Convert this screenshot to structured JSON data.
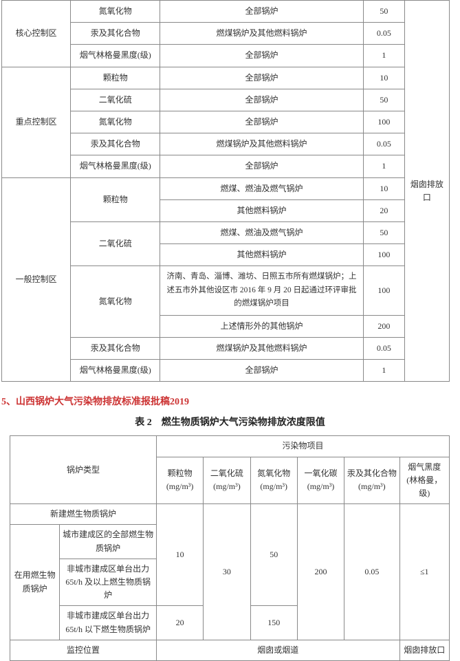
{
  "table1": {
    "locationLabel": "烟囱排放口",
    "zones": [
      {
        "name": "核心控制区",
        "rows": [
          {
            "pollutant": "氮氧化物",
            "scope": "全部锅炉",
            "limit": "50"
          },
          {
            "pollutant": "汞及其化合物",
            "scope": "燃煤锅炉及其他燃料锅炉",
            "limit": "0.05"
          },
          {
            "pollutant": "烟气林格曼黑度(级)",
            "scope": "全部锅炉",
            "limit": "1"
          }
        ]
      },
      {
        "name": "重点控制区",
        "rows": [
          {
            "pollutant": "颗粒物",
            "scope": "全部锅炉",
            "limit": "10"
          },
          {
            "pollutant": "二氧化硫",
            "scope": "全部锅炉",
            "limit": "50"
          },
          {
            "pollutant": "氮氧化物",
            "scope": "全部锅炉",
            "limit": "100"
          },
          {
            "pollutant": "汞及其化合物",
            "scope": "燃煤锅炉及其他燃料锅炉",
            "limit": "0.05"
          },
          {
            "pollutant": "烟气林格曼黑度(级)",
            "scope": "全部锅炉",
            "limit": "1"
          }
        ]
      },
      {
        "name": "一般控制区",
        "rows": [
          {
            "pollutant": "颗粒物",
            "span": 2,
            "subs": [
              {
                "scope": "燃煤、燃油及燃气锅炉",
                "limit": "10"
              },
              {
                "scope": "其他燃料锅炉",
                "limit": "20"
              }
            ]
          },
          {
            "pollutant": "二氧化硫",
            "span": 2,
            "subs": [
              {
                "scope": "燃煤、燃油及燃气锅炉",
                "limit": "50"
              },
              {
                "scope": "其他燃料锅炉",
                "limit": "100"
              }
            ]
          },
          {
            "pollutant": "氮氧化物",
            "span": 2,
            "subs": [
              {
                "scope": "济南、青岛、淄博、潍坊、日照五市所有燃煤锅炉；上述五市外其他设区市 2016 年 9 月 20 日起通过环评审批的燃煤锅炉项目",
                "limit": "100",
                "long": true
              },
              {
                "scope": "上述情形外的其他锅炉",
                "limit": "200"
              }
            ]
          },
          {
            "pollutant": "汞及其化合物",
            "scope": "燃煤锅炉及其他燃料锅炉",
            "limit": "0.05"
          },
          {
            "pollutant": "烟气林格曼黑度(级)",
            "scope": "全部锅炉",
            "limit": "1"
          }
        ]
      }
    ]
  },
  "heading": "5、山西锅炉大气污染物排放标准报批稿2019",
  "table2": {
    "title": "表 2　燃生物质锅炉大气污染物排放浓度限值",
    "headerTop": "污染物项目",
    "colBoiler": "锅炉类型",
    "cols": [
      {
        "name": "颗粒物",
        "unit": "(mg/m³)"
      },
      {
        "name": "二氧化硫",
        "unit": "(mg/m³)"
      },
      {
        "name": "氮氧化物",
        "unit": "(mg/m³)"
      },
      {
        "name": "一氧化碳",
        "unit": "(mg/m³)"
      },
      {
        "name": "汞及其化合物",
        "unit": "(mg/m³)"
      },
      {
        "name": "烟气黑度",
        "unit": "(林格曼，级)"
      }
    ],
    "rowNew": "新建燃生物质锅炉",
    "groupExisting": "在用燃生物质锅炉",
    "rowExisting": [
      "城市建成区的全部燃生物质锅炉",
      "非城市建成区单台出力 65t/h 及以上燃生物质锅炉",
      "非城市建成区单台出力 65t/h 以下燃生物质锅炉"
    ],
    "values": {
      "pm_a": "10",
      "pm_b": "20",
      "so2": "30",
      "nox_a": "50",
      "nox_b": "150",
      "co": "200",
      "hg": "0.05",
      "black": "≤1"
    },
    "monitorLabel": "监控位置",
    "monitorVal1": "烟囱或烟道",
    "monitorVal2": "烟囱排放口"
  }
}
